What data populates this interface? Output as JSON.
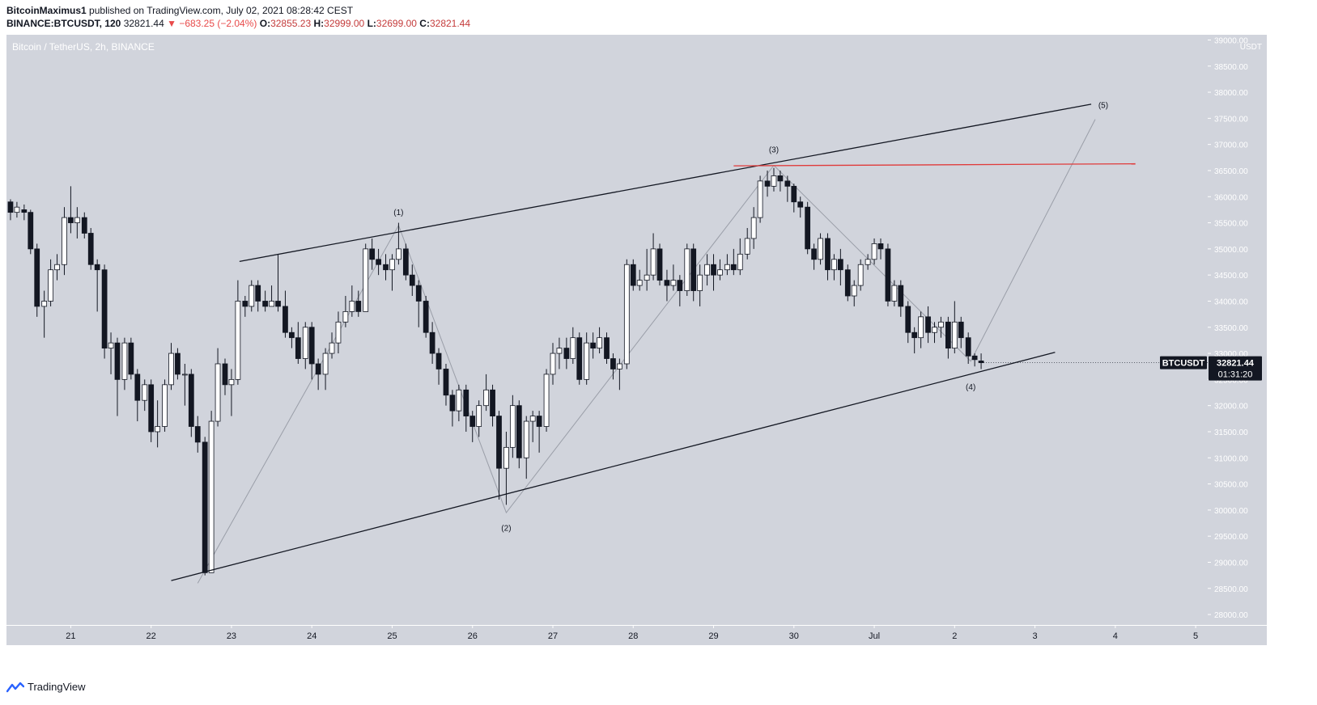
{
  "header": {
    "author": "BitcoinMaximus1",
    "published_text": "published on TradingView.com, July 02, 2021 08:28:42 CEST",
    "symbol_interval": "BINANCE:BTCUSDT, 120",
    "last": "32821.44",
    "change": "▼ −683.25 (−2.04%)",
    "o_label": "O:",
    "o_value": "32855.23",
    "h_label": "H:",
    "h_value": "32999.00",
    "l_label": "L:",
    "l_value": "32699.00",
    "c_label": "C:",
    "c_value": "32821.44"
  },
  "footer": {
    "brand": "TradingView",
    "logo_icon": "tradingview-logo-icon"
  },
  "colors": {
    "background": "#d1d4dc",
    "up": "#ffffff",
    "down": "#131722",
    "resistance": "#e03a3a",
    "wave": "#9a9ea8"
  },
  "chart_data": {
    "type": "candlestick",
    "title": "Bitcoin / TetherUS, 2h, BINANCE",
    "y_unit": "USDT",
    "ylim": [
      27800,
      39100
    ],
    "y_ticks": [
      "39000.00",
      "38500.00",
      "38000.00",
      "37500.00",
      "37000.00",
      "36500.00",
      "36000.00",
      "35500.00",
      "35000.00",
      "34500.00",
      "34000.00",
      "33500.00",
      "33000.00",
      "32500.00",
      "32000.00",
      "31500.00",
      "31000.00",
      "30500.00",
      "30000.00",
      "29500.00",
      "29000.00",
      "28500.00",
      "28000.00"
    ],
    "x_range": [
      20.2,
      5.15
    ],
    "x_ticks": [
      {
        "label": "21",
        "t": 21
      },
      {
        "label": "22",
        "t": 22
      },
      {
        "label": "23",
        "t": 23
      },
      {
        "label": "24",
        "t": 24
      },
      {
        "label": "25",
        "t": 25
      },
      {
        "label": "26",
        "t": 26
      },
      {
        "label": "27",
        "t": 27
      },
      {
        "label": "28",
        "t": 28
      },
      {
        "label": "29",
        "t": 29
      },
      {
        "label": "30",
        "t": 30
      },
      {
        "label": "Jul",
        "t": 31
      },
      {
        "label": "2",
        "t": 32
      },
      {
        "label": "3",
        "t": 33
      },
      {
        "label": "4",
        "t": 34
      },
      {
        "label": "5",
        "t": 35
      }
    ],
    "candles": [
      [
        20.25,
        35900,
        35700,
        35950,
        35550
      ],
      [
        20.33,
        35700,
        35800,
        35900,
        35600
      ],
      [
        20.42,
        35750,
        35700,
        35850,
        35550
      ],
      [
        20.5,
        35700,
        35000,
        35750,
        34900
      ],
      [
        20.58,
        35000,
        33900,
        35100,
        33700
      ],
      [
        20.67,
        33900,
        34000,
        34200,
        33300
      ],
      [
        20.75,
        34000,
        34600,
        34800,
        33900
      ],
      [
        20.83,
        34600,
        34700,
        34900,
        34400
      ],
      [
        20.92,
        34700,
        35600,
        35800,
        34500
      ],
      [
        21.0,
        35600,
        35500,
        36200,
        35300
      ],
      [
        21.08,
        35500,
        35600,
        35800,
        35200
      ],
      [
        21.17,
        35600,
        35300,
        35700,
        35200
      ],
      [
        21.25,
        35300,
        34700,
        35400,
        34600
      ],
      [
        21.33,
        34700,
        34600,
        34800,
        33800
      ],
      [
        21.42,
        34600,
        33100,
        34700,
        32900
      ],
      [
        21.5,
        33100,
        33200,
        33400,
        32600
      ],
      [
        21.58,
        33200,
        32500,
        33300,
        31800
      ],
      [
        21.67,
        32500,
        33200,
        33300,
        32300
      ],
      [
        21.75,
        33200,
        32600,
        33300,
        32500
      ],
      [
        21.83,
        32600,
        32100,
        32700,
        31700
      ],
      [
        21.92,
        32100,
        32400,
        32500,
        31900
      ],
      [
        22.0,
        32400,
        31500,
        32500,
        31300
      ],
      [
        22.08,
        31500,
        31600,
        32100,
        31200
      ],
      [
        22.17,
        31600,
        32400,
        32500,
        31500
      ],
      [
        22.25,
        32400,
        33000,
        33200,
        32300
      ],
      [
        22.33,
        33000,
        32600,
        33100,
        32500
      ],
      [
        22.42,
        32600,
        32600,
        32800,
        32000
      ],
      [
        22.5,
        32600,
        31600,
        32700,
        31400
      ],
      [
        22.58,
        31600,
        31300,
        31800,
        31100
      ],
      [
        22.67,
        31300,
        28800,
        31400,
        28750
      ],
      [
        22.75,
        28800,
        31700,
        31900,
        28900
      ],
      [
        22.83,
        31700,
        32800,
        33100,
        31600
      ],
      [
        22.92,
        32800,
        32400,
        32900,
        32200
      ],
      [
        23.0,
        32400,
        32500,
        32700,
        31800
      ],
      [
        23.08,
        32500,
        34000,
        34400,
        32400
      ],
      [
        23.17,
        34000,
        33900,
        34100,
        33700
      ],
      [
        23.25,
        33900,
        34300,
        34400,
        33800
      ],
      [
        23.33,
        34300,
        34000,
        34400,
        33800
      ],
      [
        23.42,
        34000,
        33900,
        34200,
        33800
      ],
      [
        23.5,
        33900,
        34000,
        34300,
        33900
      ],
      [
        23.58,
        34000,
        33900,
        34900,
        33800
      ],
      [
        23.67,
        33900,
        33400,
        34200,
        33300
      ],
      [
        23.75,
        33400,
        33300,
        33500,
        33100
      ],
      [
        23.83,
        33300,
        32900,
        33600,
        32800
      ],
      [
        23.92,
        32900,
        33500,
        33600,
        32700
      ],
      [
        24.0,
        33500,
        32800,
        33600,
        32500
      ],
      [
        24.08,
        32800,
        32600,
        32900,
        32300
      ],
      [
        24.17,
        32600,
        33000,
        33100,
        32300
      ],
      [
        24.25,
        33000,
        33200,
        33400,
        32900
      ],
      [
        24.33,
        33200,
        33600,
        33800,
        33000
      ],
      [
        24.42,
        33600,
        33800,
        34100,
        33500
      ],
      [
        24.5,
        33800,
        34000,
        34300,
        33700
      ],
      [
        24.58,
        34000,
        33800,
        34200,
        33700
      ],
      [
        24.67,
        33800,
        35000,
        35100,
        33800
      ],
      [
        24.75,
        35000,
        34800,
        35200,
        34600
      ],
      [
        24.83,
        34800,
        34700,
        35000,
        34500
      ],
      [
        24.92,
        34700,
        34600,
        34900,
        34400
      ],
      [
        25.0,
        34600,
        34800,
        34900,
        34200
      ],
      [
        25.08,
        34800,
        35000,
        35500,
        34700
      ],
      [
        25.17,
        35000,
        34500,
        35100,
        34400
      ],
      [
        25.25,
        34500,
        34300,
        34700,
        34100
      ],
      [
        25.33,
        34300,
        34000,
        34400,
        33500
      ],
      [
        25.42,
        34000,
        33400,
        34100,
        33300
      ],
      [
        25.5,
        33400,
        33000,
        33600,
        32800
      ],
      [
        25.58,
        33000,
        32700,
        33100,
        32400
      ],
      [
        25.67,
        32700,
        32200,
        32800,
        32000
      ],
      [
        25.75,
        32200,
        31900,
        32300,
        31600
      ],
      [
        25.83,
        31900,
        32300,
        32400,
        31700
      ],
      [
        25.92,
        32300,
        31800,
        32400,
        31500
      ],
      [
        26.0,
        31800,
        31600,
        31900,
        31300
      ],
      [
        26.08,
        31600,
        32000,
        32100,
        31400
      ],
      [
        26.17,
        32000,
        32300,
        32600,
        31900
      ],
      [
        26.25,
        32300,
        31800,
        32400,
        31600
      ],
      [
        26.33,
        31800,
        30800,
        31900,
        30200
      ],
      [
        26.42,
        30800,
        31200,
        31500,
        30100
      ],
      [
        26.5,
        31200,
        32000,
        32200,
        31000
      ],
      [
        26.58,
        32000,
        31000,
        32100,
        30800
      ],
      [
        26.67,
        31000,
        31700,
        31800,
        30600
      ],
      [
        26.75,
        31700,
        31800,
        31900,
        31300
      ],
      [
        26.83,
        31800,
        31600,
        31900,
        31100
      ],
      [
        26.92,
        31600,
        32600,
        32700,
        31500
      ],
      [
        27.0,
        32600,
        33000,
        33200,
        32400
      ],
      [
        27.08,
        33000,
        33100,
        33300,
        32700
      ],
      [
        27.17,
        33100,
        32900,
        33300,
        32700
      ],
      [
        27.25,
        32900,
        33300,
        33500,
        32800
      ],
      [
        27.33,
        33300,
        32500,
        33400,
        32400
      ],
      [
        27.42,
        32500,
        33200,
        33400,
        32400
      ],
      [
        27.5,
        33200,
        33100,
        33400,
        32900
      ],
      [
        27.58,
        33100,
        33300,
        33500,
        33000
      ],
      [
        27.67,
        33300,
        32900,
        33400,
        32800
      ],
      [
        27.75,
        32900,
        32700,
        33000,
        32500
      ],
      [
        27.83,
        32700,
        32800,
        32900,
        32300
      ],
      [
        27.92,
        32800,
        34700,
        34800,
        32700
      ],
      [
        28.0,
        34700,
        34300,
        34800,
        34200
      ],
      [
        28.08,
        34300,
        34400,
        34600,
        34200
      ],
      [
        28.17,
        34400,
        34500,
        35000,
        34200
      ],
      [
        28.25,
        34500,
        35000,
        35300,
        34400
      ],
      [
        28.33,
        35000,
        34400,
        35100,
        34300
      ],
      [
        28.42,
        34400,
        34300,
        34600,
        34000
      ],
      [
        28.5,
        34300,
        34400,
        34700,
        34200
      ],
      [
        28.58,
        34400,
        34200,
        34500,
        33900
      ],
      [
        28.67,
        34200,
        35000,
        35100,
        34100
      ],
      [
        28.75,
        35000,
        34200,
        35100,
        34000
      ],
      [
        28.83,
        34200,
        34500,
        34700,
        33900
      ],
      [
        28.92,
        34500,
        34700,
        34900,
        34300
      ],
      [
        29.0,
        34700,
        34500,
        34900,
        34200
      ],
      [
        29.08,
        34500,
        34600,
        34800,
        34400
      ],
      [
        29.17,
        34600,
        34700,
        34900,
        34500
      ],
      [
        29.25,
        34700,
        34600,
        35000,
        34500
      ],
      [
        29.33,
        34600,
        34900,
        35200,
        34500
      ],
      [
        29.42,
        34900,
        35200,
        35400,
        34800
      ],
      [
        29.5,
        35200,
        35600,
        35800,
        35000
      ],
      [
        29.58,
        35600,
        36300,
        36400,
        35500
      ],
      [
        29.67,
        36300,
        36200,
        36500,
        36000
      ],
      [
        29.75,
        36200,
        36400,
        36550,
        36100
      ],
      [
        29.83,
        36400,
        36300,
        36500,
        36100
      ],
      [
        29.92,
        36300,
        36200,
        36400,
        35900
      ],
      [
        30.0,
        36200,
        35900,
        36250,
        35700
      ],
      [
        30.08,
        35900,
        35800,
        36000,
        35600
      ],
      [
        30.17,
        35800,
        35000,
        35900,
        34900
      ],
      [
        30.25,
        35000,
        34800,
        35100,
        34600
      ],
      [
        30.33,
        34800,
        35200,
        35300,
        34700
      ],
      [
        30.42,
        35200,
        34600,
        35300,
        34400
      ],
      [
        30.5,
        34600,
        34800,
        34900,
        34400
      ],
      [
        30.58,
        34800,
        34600,
        35000,
        34300
      ],
      [
        30.67,
        34600,
        34100,
        34700,
        34000
      ],
      [
        30.75,
        34100,
        34300,
        34400,
        33900
      ],
      [
        30.83,
        34300,
        34700,
        34800,
        34200
      ],
      [
        30.92,
        34700,
        34800,
        34900,
        34600
      ],
      [
        31.0,
        34800,
        35100,
        35200,
        34700
      ],
      [
        31.08,
        35100,
        35000,
        35200,
        34800
      ],
      [
        31.17,
        35000,
        34000,
        35100,
        33900
      ],
      [
        31.25,
        34000,
        34300,
        34400,
        33900
      ],
      [
        31.33,
        34300,
        33900,
        34400,
        33700
      ],
      [
        31.42,
        33900,
        33400,
        34000,
        33200
      ],
      [
        31.5,
        33400,
        33300,
        33500,
        33000
      ],
      [
        31.58,
        33300,
        33700,
        33800,
        33100
      ],
      [
        31.67,
        33700,
        33400,
        33900,
        33200
      ],
      [
        31.75,
        33400,
        33500,
        33600,
        33200
      ],
      [
        31.83,
        33500,
        33600,
        33700,
        33300
      ],
      [
        31.92,
        33600,
        33100,
        33700,
        32900
      ],
      [
        32.0,
        33100,
        33600,
        34000,
        33000
      ],
      [
        32.08,
        33600,
        33300,
        33700,
        33100
      ],
      [
        32.17,
        33300,
        32950,
        33400,
        32800
      ],
      [
        32.25,
        32950,
        32880,
        33000,
        32750
      ],
      [
        32.33,
        32855,
        32821,
        32999,
        32699
      ]
    ],
    "channel_upper": {
      "start": [
        23.1,
        34760
      ],
      "end": [
        33.7,
        37770
      ]
    },
    "channel_lower": {
      "start": [
        22.25,
        28650
      ],
      "end": [
        33.25,
        33020
      ]
    },
    "resistance": {
      "start": [
        29.25,
        36590
      ],
      "end": [
        34.25,
        36630
      ]
    },
    "wave_path": [
      [
        22.58,
        28600
      ],
      [
        25.08,
        35450
      ],
      [
        26.42,
        29950
      ],
      [
        29.75,
        36600
      ],
      [
        32.2,
        32850
      ],
      [
        33.75,
        37480
      ]
    ],
    "wave_labels": [
      {
        "text": "(1)",
        "t": 25.08,
        "v": 35650,
        "pos": "above"
      },
      {
        "text": "(2)",
        "t": 26.42,
        "v": 29700,
        "pos": "below"
      },
      {
        "text": "(3)",
        "t": 29.75,
        "v": 36850,
        "pos": "above"
      },
      {
        "text": "(4)",
        "t": 32.2,
        "v": 32400,
        "pos": "below"
      },
      {
        "text": "(5)",
        "t": 33.85,
        "v": 37700,
        "pos": "above"
      }
    ],
    "last_price": {
      "symbol": "BTCUSDT",
      "value": "32821.44",
      "countdown": "01:31:20"
    }
  }
}
